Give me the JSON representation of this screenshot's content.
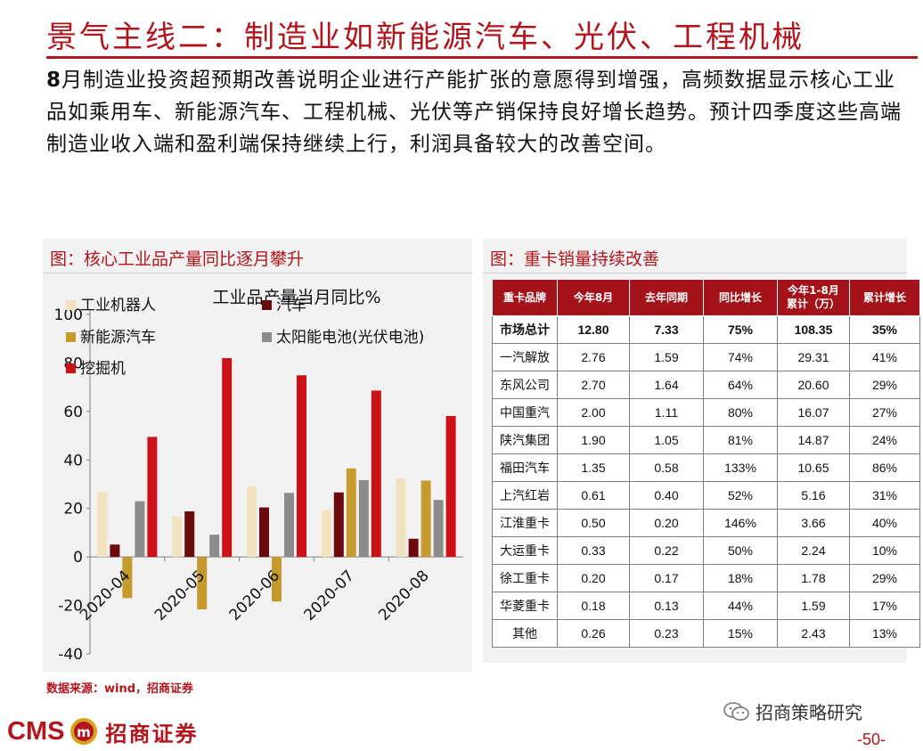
{
  "header": {
    "title": "景气主线二：制造业如新能源汽车、光伏、工程机械",
    "intro_lead": "8",
    "intro_rest": "月制造业投资超预期改善说明企业进行产能扩张的意愿得到增强，高频数据显示核心工业品如乘用车、新能源汽车、工程机械、光伏等产销保持良好增长趋势。预计四季度这些高端制造业收入端和盈利端保持继续上行，利润具备较大的改善空间。"
  },
  "left_panel": {
    "caption": "图：核心工业品产量同比逐月攀升"
  },
  "right_panel": {
    "caption": "图：重卡销量持续改善"
  },
  "chart_data": {
    "type": "bar",
    "title": "工业品产量当月同比%",
    "categories": [
      "2020-04",
      "2020-05",
      "2020-06",
      "2020-07",
      "2020-08"
    ],
    "series": [
      {
        "name": "工业机器人",
        "color": "#f2e3c0",
        "values": [
          26.7,
          16.8,
          29.2,
          19.3,
          32.4
        ]
      },
      {
        "name": "汽车",
        "color": "#6b0a0d",
        "values": [
          5.1,
          18.8,
          20.4,
          26.6,
          7.5
        ]
      },
      {
        "name": "新能源汽车",
        "color": "#c79a2e",
        "values": [
          -17.0,
          -21.6,
          -18.4,
          36.5,
          31.5
        ]
      },
      {
        "name": "太阳能电池(光伏电池)",
        "color": "#8c8c8c",
        "values": [
          23.0,
          9.2,
          26.4,
          31.7,
          23.5
        ]
      },
      {
        "name": "挖掘机",
        "color": "#cc1017",
        "values": [
          49.5,
          82.0,
          74.9,
          68.6,
          58.1
        ]
      }
    ],
    "ylim": [
      -40,
      100
    ],
    "yticks": [
      -40,
      -20,
      0,
      20,
      40,
      60,
      80,
      100
    ],
    "legend_position": "top-left",
    "grid": false
  },
  "truck_table": {
    "headers": [
      "重卡品牌",
      "今年8月",
      "去年同期",
      "同比增长",
      "今年1-8月\n累计（万）",
      "累计增长"
    ],
    "rows": [
      [
        "市场总计",
        "12.80",
        "7.33",
        "75%",
        "108.35",
        "35%"
      ],
      [
        "一汽解放",
        "2.76",
        "1.59",
        "74%",
        "29.31",
        "41%"
      ],
      [
        "东风公司",
        "2.70",
        "1.64",
        "64%",
        "20.60",
        "29%"
      ],
      [
        "中国重汽",
        "2.00",
        "1.11",
        "80%",
        "16.07",
        "27%"
      ],
      [
        "陕汽集团",
        "1.90",
        "1.05",
        "81%",
        "14.87",
        "24%"
      ],
      [
        "福田汽车",
        "1.35",
        "0.58",
        "133%",
        "10.65",
        "86%"
      ],
      [
        "上汽红岩",
        "0.61",
        "0.40",
        "52%",
        "5.16",
        "31%"
      ],
      [
        "江淮重卡",
        "0.50",
        "0.20",
        "146%",
        "3.66",
        "40%"
      ],
      [
        "大运重卡",
        "0.33",
        "0.22",
        "50%",
        "2.24",
        "10%"
      ],
      [
        "徐工重卡",
        "0.20",
        "0.17",
        "18%",
        "1.78",
        "29%"
      ],
      [
        "华菱重卡",
        "0.18",
        "0.13",
        "44%",
        "1.59",
        "17%"
      ],
      [
        "其他",
        "0.26",
        "0.23",
        "15%",
        "2.43",
        "13%"
      ]
    ]
  },
  "footer": {
    "source": "数据来源：wind，招商证券",
    "logo_cms": "CMS",
    "logo_cn": "招商证券",
    "wechat": "招商策略研究",
    "page_number": "-50-"
  },
  "colors": {
    "brand_red": "#b2151c",
    "header_red": "#a4131a"
  },
  "icons": {
    "logo": "cms-logo-icon",
    "wechat": "wechat-icon"
  }
}
